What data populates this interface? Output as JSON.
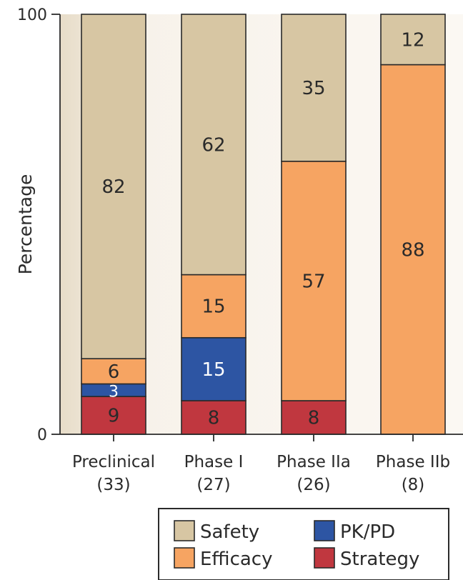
{
  "chart_data": {
    "type": "bar",
    "stacked": true,
    "title": "",
    "xlabel": "",
    "ylabel": "Percentage",
    "ylim": [
      0,
      100
    ],
    "yticks": [
      "0",
      "100"
    ],
    "categories": [
      "Preclinical",
      "Phase I",
      "Phase IIa",
      "Phase IIb"
    ],
    "category_counts": [
      "(33)",
      "(27)",
      "(26)",
      "(8)"
    ],
    "series": [
      {
        "name": "Strategy",
        "color": "#c0373f",
        "values": [
          9,
          8,
          8,
          0
        ],
        "labels": [
          "9",
          "8",
          "8",
          ""
        ]
      },
      {
        "name": "PK/PD",
        "color": "#2d55a3",
        "values": [
          3,
          15,
          0,
          0
        ],
        "labels": [
          "3",
          "15",
          "",
          ""
        ]
      },
      {
        "name": "Efficacy",
        "color": "#f6a462",
        "values": [
          6,
          15,
          57,
          88
        ],
        "labels": [
          "6",
          "15",
          "57",
          "88"
        ]
      },
      {
        "name": "Safety",
        "color": "#d7c6a3",
        "values": [
          82,
          62,
          35,
          12
        ],
        "labels": [
          "82",
          "62",
          "35",
          "12"
        ]
      }
    ],
    "legend": {
      "position": "bottom-right",
      "order": [
        "Safety",
        "PK/PD",
        "Efficacy",
        "Strategy"
      ]
    },
    "background_color": "#f4efe6",
    "grid": false
  }
}
